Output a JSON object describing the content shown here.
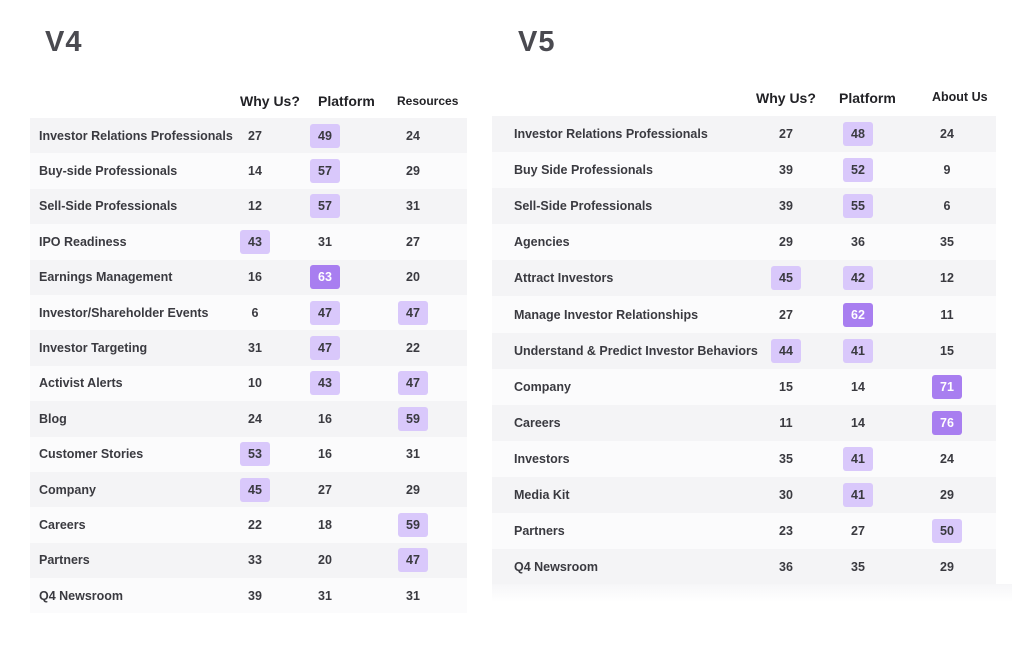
{
  "chart_data": [
    {
      "type": "table",
      "title": "V4",
      "columns": [
        "Why Us?",
        "Platform",
        "Resources"
      ],
      "rows": [
        {
          "label": "Investor Relations Professionals",
          "values": [
            27,
            49,
            24
          ],
          "highlight": [
            0,
            1,
            0
          ]
        },
        {
          "label": "Buy-side Professionals",
          "values": [
            14,
            57,
            29
          ],
          "highlight": [
            0,
            1,
            0
          ]
        },
        {
          "label": "Sell-Side Professionals",
          "values": [
            12,
            57,
            31
          ],
          "highlight": [
            0,
            1,
            0
          ]
        },
        {
          "label": "IPO Readiness",
          "values": [
            43,
            31,
            27
          ],
          "highlight": [
            1,
            0,
            0
          ]
        },
        {
          "label": "Earnings Management",
          "values": [
            16,
            63,
            20
          ],
          "highlight": [
            0,
            2,
            0
          ]
        },
        {
          "label": "Investor/Shareholder Events",
          "values": [
            6,
            47,
            47
          ],
          "highlight": [
            0,
            1,
            1
          ]
        },
        {
          "label": "Investor Targeting",
          "values": [
            31,
            47,
            22
          ],
          "highlight": [
            0,
            1,
            0
          ]
        },
        {
          "label": "Activist Alerts",
          "values": [
            10,
            43,
            47
          ],
          "highlight": [
            0,
            1,
            1
          ]
        },
        {
          "label": "Blog",
          "values": [
            24,
            16,
            59
          ],
          "highlight": [
            0,
            0,
            1
          ]
        },
        {
          "label": "Customer Stories",
          "values": [
            53,
            16,
            31
          ],
          "highlight": [
            1,
            0,
            0
          ]
        },
        {
          "label": "Company",
          "values": [
            45,
            27,
            29
          ],
          "highlight": [
            1,
            0,
            0
          ]
        },
        {
          "label": "Careers",
          "values": [
            22,
            18,
            59
          ],
          "highlight": [
            0,
            0,
            1
          ]
        },
        {
          "label": "Partners",
          "values": [
            33,
            20,
            47
          ],
          "highlight": [
            0,
            0,
            1
          ]
        },
        {
          "label": "Q4 Newsroom",
          "values": [
            39,
            31,
            31
          ],
          "highlight": [
            0,
            0,
            0
          ]
        }
      ]
    },
    {
      "type": "table",
      "title": "V5",
      "columns": [
        "Why Us?",
        "Platform",
        "About Us"
      ],
      "rows": [
        {
          "label": "Investor Relations Professionals",
          "values": [
            27,
            48,
            24
          ],
          "highlight": [
            0,
            1,
            0
          ]
        },
        {
          "label": "Buy Side Professionals",
          "values": [
            39,
            52,
            9
          ],
          "highlight": [
            0,
            1,
            0
          ]
        },
        {
          "label": "Sell-Side Professionals",
          "values": [
            39,
            55,
            6
          ],
          "highlight": [
            0,
            1,
            0
          ]
        },
        {
          "label": "Agencies",
          "values": [
            29,
            36,
            35
          ],
          "highlight": [
            0,
            0,
            0
          ]
        },
        {
          "label": "Attract Investors",
          "values": [
            45,
            42,
            12
          ],
          "highlight": [
            1,
            1,
            0
          ]
        },
        {
          "label": "Manage Investor Relationships",
          "values": [
            27,
            62,
            11
          ],
          "highlight": [
            0,
            2,
            0
          ]
        },
        {
          "label": "Understand & Predict Investor Behaviors",
          "values": [
            44,
            41,
            15
          ],
          "highlight": [
            1,
            1,
            0
          ]
        },
        {
          "label": "Company",
          "values": [
            15,
            14,
            71
          ],
          "highlight": [
            0,
            0,
            2
          ]
        },
        {
          "label": "Careers",
          "values": [
            11,
            14,
            76
          ],
          "highlight": [
            0,
            0,
            2
          ]
        },
        {
          "label": "Investors",
          "values": [
            35,
            41,
            24
          ],
          "highlight": [
            0,
            1,
            0
          ]
        },
        {
          "label": "Media Kit",
          "values": [
            30,
            41,
            29
          ],
          "highlight": [
            0,
            1,
            0
          ]
        },
        {
          "label": "Partners",
          "values": [
            23,
            27,
            50
          ],
          "highlight": [
            0,
            0,
            1
          ]
        },
        {
          "label": "Q4 Newsroom",
          "values": [
            36,
            35,
            29
          ],
          "highlight": [
            0,
            0,
            0
          ]
        }
      ]
    }
  ],
  "colors": {
    "highlight_light": "#d9c8fb",
    "highlight_strong": "#a87ef0",
    "row_shade": "#f4f4f6"
  }
}
